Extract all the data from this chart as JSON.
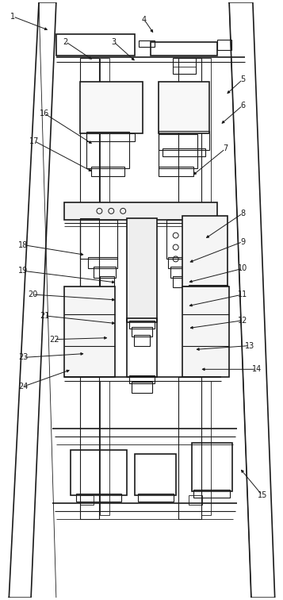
{
  "fig_width": 3.57,
  "fig_height": 7.56,
  "dpi": 100,
  "bg_color": "#ffffff",
  "line_color": "#1a1a1a",
  "lw_thick": 1.2,
  "lw_med": 0.8,
  "lw_thin": 0.6,
  "label_fs": 7.0,
  "annotations": [
    [
      "1",
      15,
      738,
      62,
      720
    ],
    [
      "2",
      82,
      706,
      118,
      682
    ],
    [
      "3",
      143,
      706,
      172,
      680
    ],
    [
      "4",
      182,
      734,
      195,
      715
    ],
    [
      "5",
      307,
      658,
      285,
      638
    ],
    [
      "6",
      307,
      625,
      278,
      600
    ],
    [
      "7",
      285,
      570,
      242,
      535
    ],
    [
      "8",
      307,
      488,
      258,
      455
    ],
    [
      "9",
      307,
      452,
      237,
      425
    ],
    [
      "10",
      307,
      418,
      236,
      400
    ],
    [
      "11",
      307,
      385,
      236,
      370
    ],
    [
      "12",
      307,
      352,
      237,
      342
    ],
    [
      "13",
      316,
      320,
      245,
      315
    ],
    [
      "14",
      325,
      290,
      252,
      290
    ],
    [
      "15",
      332,
      130,
      303,
      165
    ],
    [
      "16",
      55,
      615,
      118,
      575
    ],
    [
      "17",
      42,
      580,
      118,
      540
    ],
    [
      "18",
      28,
      448,
      108,
      435
    ],
    [
      "19",
      28,
      415,
      148,
      400
    ],
    [
      "20",
      40,
      385,
      148,
      378
    ],
    [
      "21",
      55,
      358,
      148,
      348
    ],
    [
      "22",
      68,
      328,
      138,
      330
    ],
    [
      "23",
      28,
      305,
      108,
      310
    ],
    [
      "24",
      28,
      268,
      90,
      290
    ]
  ]
}
